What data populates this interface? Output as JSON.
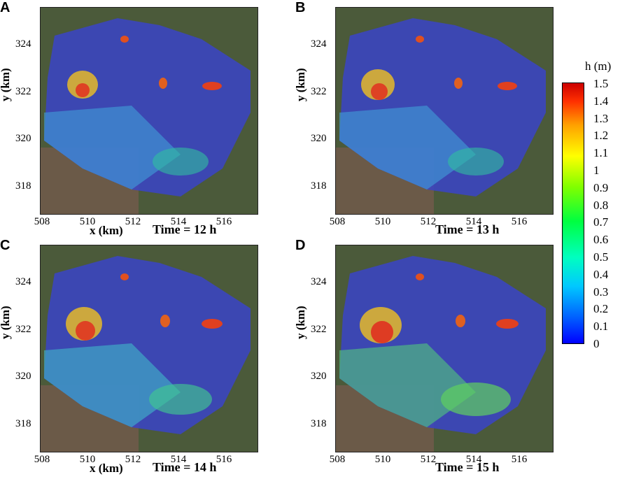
{
  "panels": [
    {
      "letter": "A",
      "time": "Time = 12 h"
    },
    {
      "letter": "B",
      "time": "Time = 13 h"
    },
    {
      "letter": "C",
      "time": "Time = 14 h"
    },
    {
      "letter": "D",
      "time": "Time = 15 h"
    }
  ],
  "axes": {
    "xlabel": "x (km)",
    "ylabel": "y (km)",
    "xticks": [
      "508",
      "510",
      "512",
      "514",
      "516"
    ],
    "yticks": [
      "324",
      "322",
      "320",
      "318"
    ]
  },
  "colorbar": {
    "title": "h (m)",
    "ticks": [
      "1.5",
      "1.4",
      "1.3",
      "1.2",
      "1.1",
      "1",
      "0.9",
      "0.8",
      "0.7",
      "0.6",
      "0.5",
      "0.4",
      "0.3",
      "0.2",
      "0.1",
      "0"
    ],
    "colors": {
      "min": "#0000ff",
      "mid": "#00ff40",
      "max": "#cc0000"
    }
  }
}
